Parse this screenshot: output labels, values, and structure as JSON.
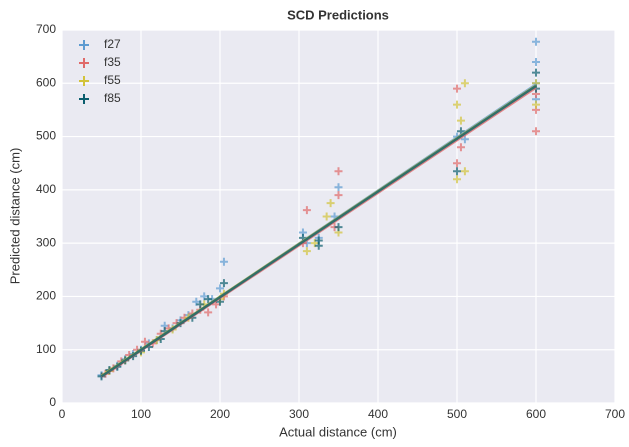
{
  "chart_data": {
    "type": "scatter",
    "title": "SCD Predictions",
    "x_label": "Actual distance (cm)",
    "y_label": "Predicted distance (cm)",
    "xlim": [
      0,
      700
    ],
    "ylim": [
      0,
      700
    ],
    "xticks": [
      0,
      100,
      200,
      300,
      400,
      500,
      600,
      700
    ],
    "yticks": [
      0,
      100,
      200,
      300,
      400,
      500,
      600,
      700
    ],
    "grid": true,
    "legend": "upper left",
    "series": [
      {
        "name": "f27",
        "color": "#5d9bd1",
        "x": [
          50,
          60,
          70,
          80,
          90,
          100,
          110,
          120,
          130,
          140,
          150,
          160,
          170,
          180,
          190,
          200,
          205,
          305,
          310,
          325,
          345,
          350,
          500,
          510,
          600,
          600,
          600,
          600
        ],
        "values": [
          52,
          60,
          70,
          82,
          92,
          100,
          112,
          118,
          145,
          140,
          155,
          165,
          190,
          200,
          195,
          215,
          265,
          320,
          300,
          310,
          350,
          405,
          500,
          495,
          600,
          640,
          678,
          570
        ],
        "fit_x": [
          50,
          600
        ],
        "fit_values": [
          50,
          598
        ]
      },
      {
        "name": "f35",
        "color": "#e06a6a",
        "x": [
          55,
          65,
          75,
          85,
          95,
          105,
          115,
          125,
          135,
          145,
          155,
          165,
          175,
          185,
          195,
          205,
          305,
          310,
          345,
          350,
          350,
          500,
          500,
          505,
          600,
          600,
          600
        ],
        "values": [
          55,
          65,
          78,
          90,
          100,
          115,
          112,
          130,
          140,
          150,
          160,
          168,
          175,
          170,
          185,
          200,
          300,
          362,
          330,
          435,
          390,
          590,
          450,
          480,
          510,
          550,
          580
        ],
        "fit_x": [
          50,
          600
        ],
        "fit_values": [
          49,
          592
        ]
      },
      {
        "name": "f55",
        "color": "#d2c33a",
        "x": [
          60,
          80,
          100,
          120,
          140,
          160,
          180,
          200,
          205,
          310,
          320,
          335,
          340,
          350,
          500,
          500,
          505,
          510,
          510,
          600,
          600
        ],
        "values": [
          60,
          80,
          95,
          118,
          138,
          160,
          185,
          195,
          205,
          285,
          300,
          350,
          375,
          320,
          420,
          560,
          530,
          600,
          435,
          560,
          600
        ],
        "fit_x": [
          50,
          600
        ],
        "fit_values": [
          51,
          596
        ]
      },
      {
        "name": "f85",
        "color": "#0b5e6e",
        "x": [
          50,
          60,
          70,
          80,
          90,
          100,
          110,
          125,
          130,
          150,
          165,
          175,
          185,
          200,
          205,
          305,
          325,
          325,
          350,
          500,
          505,
          600,
          600
        ],
        "values": [
          50,
          62,
          68,
          80,
          88,
          98,
          105,
          120,
          135,
          150,
          160,
          185,
          195,
          190,
          225,
          310,
          295,
          305,
          330,
          435,
          510,
          590,
          620
        ],
        "fit_x": [
          50,
          600
        ],
        "fit_values": [
          50,
          595
        ]
      }
    ]
  }
}
